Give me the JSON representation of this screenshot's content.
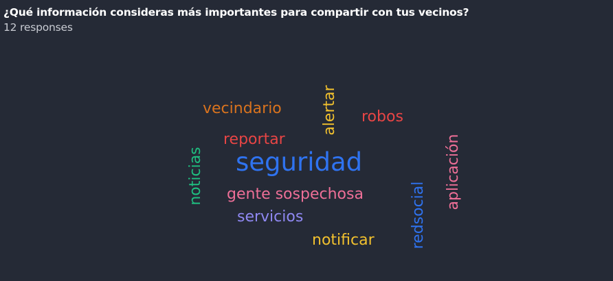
{
  "question": "¿Qué información consideras más importantes para compartir con tus vecinos?",
  "responses": "12 responses",
  "words": [
    {
      "id": "vecindario",
      "text": "vecindario",
      "color": "#d9731e"
    },
    {
      "id": "alertar",
      "text": "alertar",
      "color": "#f2c12e"
    },
    {
      "id": "robos",
      "text": "robos",
      "color": "#e84545"
    },
    {
      "id": "reportar",
      "text": "reportar",
      "color": "#e84545"
    },
    {
      "id": "seguridad",
      "text": "seguridad",
      "color": "#2f73f0"
    },
    {
      "id": "noticias",
      "text": "noticias",
      "color": "#1fbf80"
    },
    {
      "id": "aplicacion",
      "text": "aplicación",
      "color": "#ee6f97"
    },
    {
      "id": "gente-sospechosa",
      "text": "gente sospechosa",
      "color": "#ee6f97"
    },
    {
      "id": "redsocial",
      "text": "redsocial",
      "color": "#2f73f0"
    },
    {
      "id": "servicios",
      "text": "servicios",
      "color": "#8f88f2"
    },
    {
      "id": "notificar",
      "text": "notificar",
      "color": "#f2c12e"
    }
  ]
}
